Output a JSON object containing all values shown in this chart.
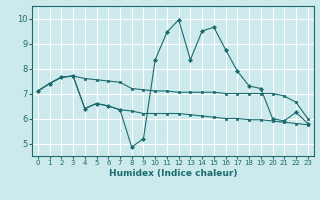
{
  "xlabel": "Humidex (Indice chaleur)",
  "xlim": [
    -0.5,
    23.5
  ],
  "ylim": [
    4.5,
    10.5
  ],
  "yticks": [
    5,
    6,
    7,
    8,
    9,
    10
  ],
  "xticks": [
    0,
    1,
    2,
    3,
    4,
    5,
    6,
    7,
    8,
    9,
    10,
    11,
    12,
    13,
    14,
    15,
    16,
    17,
    18,
    19,
    20,
    21,
    22,
    23
  ],
  "bg_color": "#cce9ec",
  "grid_color": "#ffffff",
  "line_color": "#1a6b6e",
  "line1_x": [
    0,
    1,
    2,
    3,
    4,
    5,
    6,
    7,
    8,
    9,
    10,
    11,
    12,
    13,
    14,
    15,
    16,
    17,
    18,
    19,
    20,
    21,
    22,
    23
  ],
  "line1_y": [
    7.1,
    7.4,
    7.65,
    7.7,
    7.6,
    7.55,
    7.5,
    7.45,
    7.2,
    7.15,
    7.1,
    7.1,
    7.05,
    7.05,
    7.05,
    7.05,
    7.0,
    7.0,
    7.0,
    7.0,
    7.0,
    6.9,
    6.65,
    6.0
  ],
  "line2_x": [
    0,
    1,
    2,
    3,
    4,
    5,
    6,
    7,
    8,
    9,
    10,
    11,
    12,
    13,
    14,
    15,
    16,
    17,
    18,
    19,
    20,
    21,
    22,
    23
  ],
  "line2_y": [
    7.1,
    7.4,
    7.65,
    7.7,
    6.4,
    6.6,
    6.5,
    6.35,
    4.85,
    5.2,
    8.35,
    9.45,
    9.95,
    8.35,
    9.5,
    9.65,
    8.75,
    7.9,
    7.3,
    7.2,
    6.0,
    5.9,
    6.25,
    5.8
  ],
  "line3_x": [
    0,
    1,
    2,
    3,
    4,
    5,
    6,
    7,
    8,
    9,
    10,
    11,
    12,
    13,
    14,
    15,
    16,
    17,
    18,
    19,
    20,
    21,
    22,
    23
  ],
  "line3_y": [
    7.1,
    7.4,
    7.65,
    7.7,
    6.4,
    6.6,
    6.5,
    6.35,
    6.3,
    6.2,
    6.2,
    6.2,
    6.2,
    6.15,
    6.1,
    6.05,
    6.0,
    6.0,
    5.95,
    5.95,
    5.9,
    5.85,
    5.8,
    5.75
  ]
}
